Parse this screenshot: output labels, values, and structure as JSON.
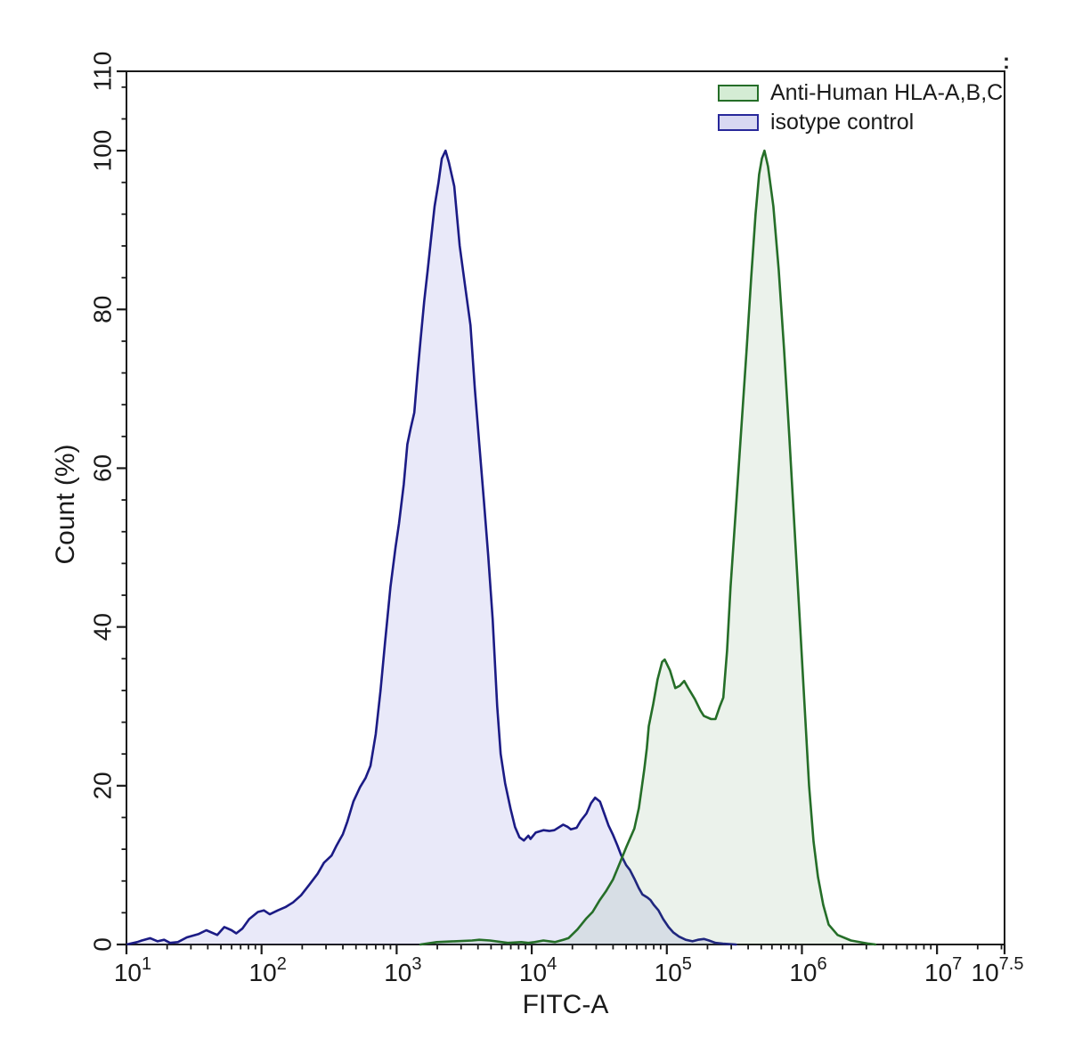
{
  "figure": {
    "corner_artifact": ":"
  },
  "chart_data": {
    "type": "area",
    "title": "",
    "xlabel": "FITC-A",
    "ylabel": "Count  (%)",
    "x_scale": "log10",
    "x_range_log10": [
      1,
      7.5
    ],
    "ylim": [
      0,
      110
    ],
    "grid": false,
    "legend_position": "top-right-inside",
    "axis_color": "#1a1a1a",
    "x_major_tick_exponents": [
      "1",
      "2",
      "3",
      "4",
      "5",
      "6",
      "7",
      "7.5"
    ],
    "y_major_ticks": [
      0,
      20,
      40,
      60,
      80,
      100,
      110
    ],
    "y_minor_tick_step": 4,
    "series": [
      {
        "name": "Anti-Human HLA-A,B,C",
        "stroke": "#256e28",
        "fill": "rgba(70,140,70,0.11)",
        "points": [
          [
            1500,
            0
          ],
          [
            1980,
            0.3
          ],
          [
            2670,
            0.4
          ],
          [
            3620,
            0.5
          ],
          [
            4090,
            0.6
          ],
          [
            4900,
            0.5
          ],
          [
            6650,
            0.2
          ],
          [
            8360,
            0.3
          ],
          [
            9440,
            0.2
          ],
          [
            10500,
            0.3
          ],
          [
            12200,
            0.5
          ],
          [
            14900,
            0.3
          ],
          [
            17100,
            0.6
          ],
          [
            18700,
            0.8
          ],
          [
            21800,
            1.9
          ],
          [
            25400,
            3.3
          ],
          [
            28200,
            4.1
          ],
          [
            31900,
            5.6
          ],
          [
            35400,
            6.7
          ],
          [
            40000,
            8.2
          ],
          [
            44500,
            10.1
          ],
          [
            50200,
            12.3
          ],
          [
            57500,
            14.6
          ],
          [
            62100,
            17.2
          ],
          [
            65000,
            19.6
          ],
          [
            68100,
            22.1
          ],
          [
            71100,
            24.7
          ],
          [
            73500,
            27.5
          ],
          [
            79300,
            30.3
          ],
          [
            85500,
            33.4
          ],
          [
            92300,
            35.6
          ],
          [
            96400,
            35.9
          ],
          [
            105700,
            34.5
          ],
          [
            115600,
            32.3
          ],
          [
            124700,
            32.6
          ],
          [
            134600,
            33.2
          ],
          [
            145200,
            32.2
          ],
          [
            161400,
            30.9
          ],
          [
            177000,
            29.5
          ],
          [
            187900,
            28.8
          ],
          [
            212300,
            28.4
          ],
          [
            229100,
            28.4
          ],
          [
            247000,
            30
          ],
          [
            262000,
            31.1
          ],
          [
            279000,
            37
          ],
          [
            296000,
            45
          ],
          [
            325000,
            55
          ],
          [
            356000,
            65
          ],
          [
            390000,
            75
          ],
          [
            421000,
            84
          ],
          [
            454000,
            92
          ],
          [
            482000,
            97
          ],
          [
            505000,
            99
          ],
          [
            528000,
            100
          ],
          [
            561000,
            98
          ],
          [
            615000,
            93
          ],
          [
            673000,
            85
          ],
          [
            738000,
            75
          ],
          [
            807000,
            64
          ],
          [
            885000,
            52
          ],
          [
            970000,
            40
          ],
          [
            1047000,
            30
          ],
          [
            1130000,
            20
          ],
          [
            1219000,
            13
          ],
          [
            1315000,
            8.5
          ],
          [
            1439000,
            5
          ],
          [
            1578000,
            2.5
          ],
          [
            1837000,
            1.2
          ],
          [
            2307000,
            0.5
          ],
          [
            3126000,
            0.1
          ],
          [
            3500000,
            0
          ]
        ]
      },
      {
        "name": "isotype control",
        "stroke": "#1b1b85",
        "fill": "rgba(85,85,210,0.13)",
        "points": [
          [
            10,
            0
          ],
          [
            12,
            0.3
          ],
          [
            13,
            0.5
          ],
          [
            15,
            0.8
          ],
          [
            17,
            0.4
          ],
          [
            19,
            0.6
          ],
          [
            21,
            0.2
          ],
          [
            24,
            0.3
          ],
          [
            28,
            0.9
          ],
          [
            34,
            1.3
          ],
          [
            39,
            1.8
          ],
          [
            47,
            1.2
          ],
          [
            53,
            2.2
          ],
          [
            60,
            1.8
          ],
          [
            65,
            1.4
          ],
          [
            72,
            2
          ],
          [
            81,
            3.2
          ],
          [
            94,
            4.1
          ],
          [
            104,
            4.3
          ],
          [
            115,
            3.8
          ],
          [
            132,
            4.3
          ],
          [
            150,
            4.7
          ],
          [
            171,
            5.3
          ],
          [
            196,
            6.2
          ],
          [
            225,
            7.5
          ],
          [
            260,
            8.9
          ],
          [
            290,
            10.3
          ],
          [
            330,
            11.2
          ],
          [
            360,
            12.5
          ],
          [
            400,
            13.9
          ],
          [
            432,
            15.5
          ],
          [
            478,
            18
          ],
          [
            535,
            19.8
          ],
          [
            590,
            21
          ],
          [
            640,
            22.5
          ],
          [
            700,
            26.5
          ],
          [
            760,
            32
          ],
          [
            820,
            38
          ],
          [
            900,
            45
          ],
          [
            980,
            50
          ],
          [
            1040,
            53
          ],
          [
            1130,
            58
          ],
          [
            1200,
            63
          ],
          [
            1270,
            65
          ],
          [
            1350,
            67
          ],
          [
            1430,
            72
          ],
          [
            1500,
            76
          ],
          [
            1600,
            81
          ],
          [
            1700,
            85
          ],
          [
            1800,
            89
          ],
          [
            1910,
            93
          ],
          [
            2040,
            96
          ],
          [
            2160,
            99
          ],
          [
            2300,
            100
          ],
          [
            2440,
            98.5
          ],
          [
            2670,
            95.5
          ],
          [
            2930,
            88
          ],
          [
            3210,
            83
          ],
          [
            3520,
            78
          ],
          [
            3790,
            70
          ],
          [
            4090,
            63
          ],
          [
            4420,
            56
          ],
          [
            4760,
            49
          ],
          [
            5140,
            41
          ],
          [
            5550,
            30
          ],
          [
            5890,
            24
          ],
          [
            6350,
            20.3
          ],
          [
            6970,
            17.1
          ],
          [
            7520,
            14.8
          ],
          [
            8110,
            13.5
          ],
          [
            8750,
            13.1
          ],
          [
            9440,
            13.7
          ],
          [
            9800,
            13.3
          ],
          [
            10700,
            14.1
          ],
          [
            12200,
            14.4
          ],
          [
            13500,
            14.3
          ],
          [
            14700,
            14.4
          ],
          [
            17100,
            15.1
          ],
          [
            18500,
            14.8
          ],
          [
            19500,
            14.5
          ],
          [
            21500,
            14.7
          ],
          [
            23100,
            15.6
          ],
          [
            25400,
            16.5
          ],
          [
            27500,
            17.8
          ],
          [
            29500,
            18.5
          ],
          [
            32000,
            18
          ],
          [
            34400,
            16.5
          ],
          [
            37000,
            15
          ],
          [
            40000,
            13.8
          ],
          [
            43000,
            12.5
          ],
          [
            45800,
            11.3
          ],
          [
            50000,
            10
          ],
          [
            53300,
            9.4
          ],
          [
            57500,
            8.3
          ],
          [
            62000,
            7.1
          ],
          [
            66000,
            6.3
          ],
          [
            72000,
            5.9
          ],
          [
            75700,
            5.6
          ],
          [
            80000,
            5
          ],
          [
            86700,
            4.3
          ],
          [
            94000,
            3.2
          ],
          [
            103000,
            2.2
          ],
          [
            112000,
            1.5
          ],
          [
            123000,
            1
          ],
          [
            138000,
            0.6
          ],
          [
            155000,
            0.4
          ],
          [
            170000,
            0.6
          ],
          [
            188000,
            0.7
          ],
          [
            205000,
            0.5
          ],
          [
            229000,
            0.2
          ],
          [
            260000,
            0.1
          ],
          [
            325000,
            0
          ]
        ]
      }
    ]
  },
  "legend": {
    "items": [
      {
        "label": "Anti-Human HLA-A,B,C",
        "swatch_fill": "#d4ecd4",
        "swatch_border": "#256e28"
      },
      {
        "label": "isotype control",
        "swatch_fill": "#d8d8f2",
        "swatch_border": "#28289a"
      }
    ]
  }
}
